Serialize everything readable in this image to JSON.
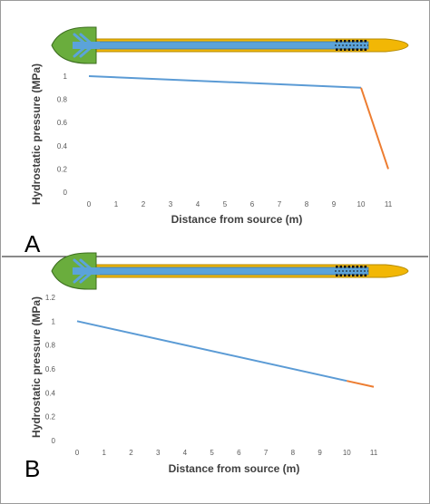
{
  "colors": {
    "tube": "#F2B705",
    "tube_edge": "#B48A00",
    "inner_pipe": "#5BA3DA",
    "leaf": "#6AAD3D",
    "leaf_edge": "#3D6E20",
    "series_main": "#5B9BD5",
    "series_tip": "#ED7D31",
    "tick_text": "#595959",
    "axis_title": "#404040",
    "perforation": "#111111"
  },
  "chart_data": [
    {
      "panel_label": "A",
      "type": "line",
      "title": "",
      "xlabel": "Distance from source (m)",
      "ylabel": "Hydrostatic pressure (MPa)",
      "xlim": [
        0,
        11
      ],
      "ylim": [
        0,
        1
      ],
      "x_ticks": [
        "0",
        "1",
        "2",
        "3",
        "4",
        "5",
        "6",
        "7",
        "8",
        "9",
        "10",
        "11"
      ],
      "y_ticks": [
        "0",
        "0.2",
        "0.4",
        "0.6",
        "0.8",
        "1"
      ],
      "grid": false,
      "legend": "none",
      "series": [
        {
          "color_key": "series_main",
          "x": [
            0,
            10
          ],
          "y": [
            1.0,
            0.9
          ]
        },
        {
          "color_key": "series_tip",
          "x": [
            10,
            11
          ],
          "y": [
            0.9,
            0.2
          ]
        }
      ]
    },
    {
      "panel_label": "B",
      "type": "line",
      "title": "",
      "xlabel": "Distance from source (m)",
      "ylabel": "Hydrostatic pressure (MPa)",
      "xlim": [
        0,
        11
      ],
      "ylim": [
        0,
        1.2
      ],
      "x_ticks": [
        "0",
        "1",
        "2",
        "3",
        "4",
        "5",
        "6",
        "7",
        "8",
        "9",
        "10",
        "11"
      ],
      "y_ticks": [
        "0",
        "0.2",
        "0.4",
        "0.6",
        "0.8",
        "1",
        "1.2"
      ],
      "grid": false,
      "legend": "none",
      "series": [
        {
          "color_key": "series_main",
          "x": [
            0,
            10
          ],
          "y": [
            1.0,
            0.5
          ]
        },
        {
          "color_key": "series_tip",
          "x": [
            10,
            11
          ],
          "y": [
            0.5,
            0.45
          ]
        }
      ]
    }
  ]
}
